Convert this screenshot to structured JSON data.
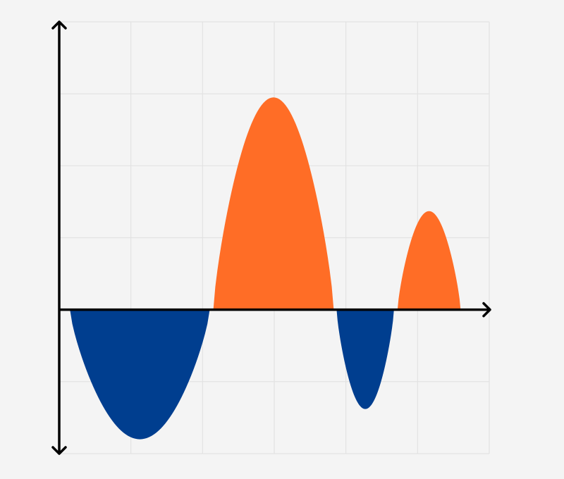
{
  "colors": {
    "background": "#f4f4f4",
    "grid": "#e2e2e2",
    "axis": "#000000",
    "positive": "#ff6d26",
    "negative": "#003e8f"
  },
  "diagram": {
    "x_range": [
      0,
      6
    ],
    "y_range": [
      -2,
      4
    ],
    "grid": true,
    "grid_step": 1,
    "lobes": [
      {
        "sign": "negative",
        "x_start": 0.15,
        "x_end": 2.1,
        "peak": -1.8
      },
      {
        "sign": "positive",
        "x_start": 2.15,
        "x_end": 3.83,
        "peak": 2.95
      },
      {
        "sign": "negative",
        "x_start": 3.87,
        "x_end": 4.67,
        "peak": -1.38
      },
      {
        "sign": "positive",
        "x_start": 4.72,
        "x_end": 5.6,
        "peak": 1.37
      }
    ]
  }
}
